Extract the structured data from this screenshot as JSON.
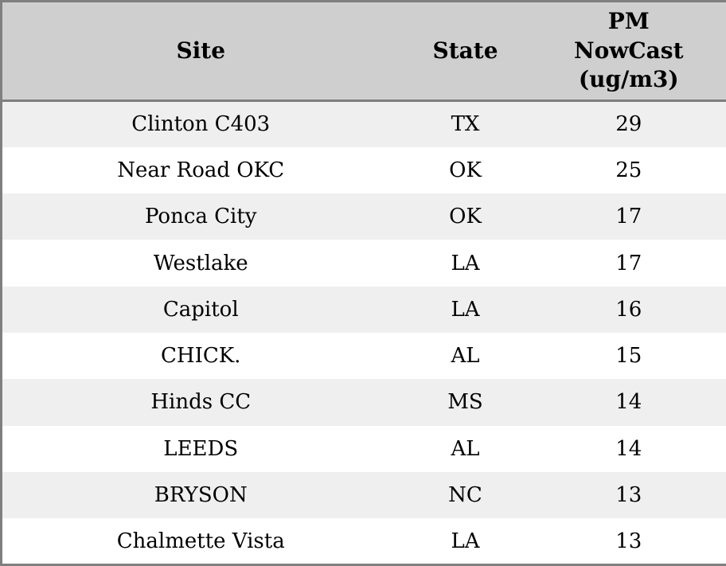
{
  "table": {
    "columns": [
      {
        "key": "site",
        "label": "Site"
      },
      {
        "key": "state",
        "label": "State"
      },
      {
        "key": "pm_nowcast",
        "label": "PM NowCast (ug/m3)"
      }
    ],
    "rows": [
      {
        "site": "Clinton C403",
        "state": "TX",
        "pm_nowcast": "29"
      },
      {
        "site": "Near Road OKC",
        "state": "OK",
        "pm_nowcast": "25"
      },
      {
        "site": "Ponca City",
        "state": "OK",
        "pm_nowcast": "17"
      },
      {
        "site": "Westlake",
        "state": "LA",
        "pm_nowcast": "17"
      },
      {
        "site": "Capitol",
        "state": "LA",
        "pm_nowcast": "16"
      },
      {
        "site": "CHICK.",
        "state": "AL",
        "pm_nowcast": "15"
      },
      {
        "site": "Hinds CC",
        "state": "MS",
        "pm_nowcast": "14"
      },
      {
        "site": "LEEDS",
        "state": "AL",
        "pm_nowcast": "14"
      },
      {
        "site": "BRYSON",
        "state": "NC",
        "pm_nowcast": "13"
      },
      {
        "site": "Chalmette Vista",
        "state": "LA",
        "pm_nowcast": "13"
      }
    ]
  },
  "chart_data": {
    "type": "table",
    "title": "",
    "columns": [
      "Site",
      "State",
      "PM NowCast (ug/m3)"
    ],
    "rows": [
      [
        "Clinton C403",
        "TX",
        29
      ],
      [
        "Near Road OKC",
        "OK",
        25
      ],
      [
        "Ponca City",
        "OK",
        17
      ],
      [
        "Westlake",
        "LA",
        17
      ],
      [
        "Capitol",
        "LA",
        16
      ],
      [
        "CHICK.",
        "AL",
        15
      ],
      [
        "Hinds CC",
        "MS",
        14
      ],
      [
        "LEEDS",
        "AL",
        14
      ],
      [
        "BRYSON",
        "NC",
        13
      ],
      [
        "Chalmette Vista",
        "LA",
        13
      ]
    ]
  },
  "colors": {
    "header_bg": "#cfcfcf",
    "row_alt_bg": "#efefef",
    "row_bg": "#ffffff",
    "border": "#7f7f7f",
    "text": "#000000"
  }
}
